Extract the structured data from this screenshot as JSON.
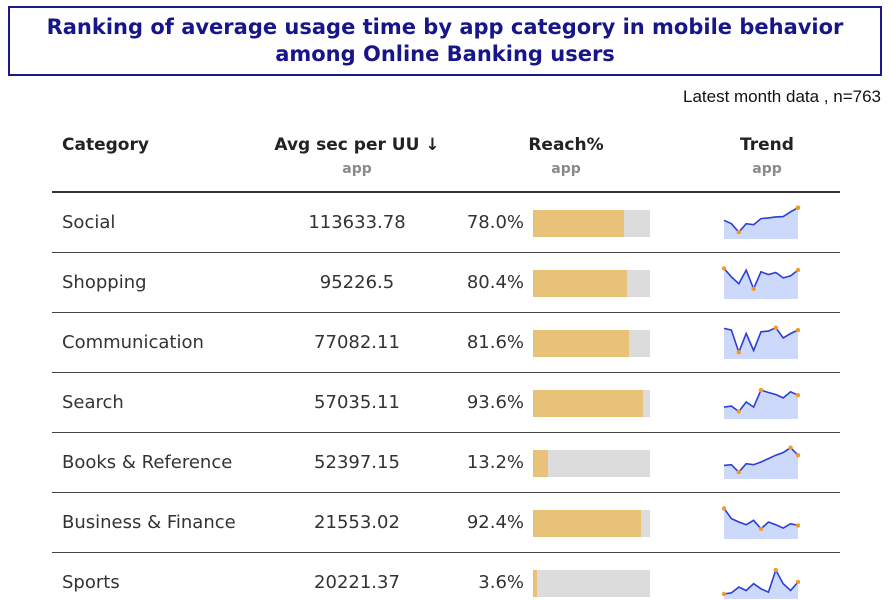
{
  "title": {
    "line1": "Ranking of average usage time by app category in mobile behavior",
    "line2": "among Online Banking users"
  },
  "subtitle": "Latest month data , n=763",
  "colors": {
    "title": "#16168a",
    "bar_fill": "#e9c27a",
    "bar_track": "#dcdcdc",
    "spark_line": "#2a3fd6",
    "spark_area": "#cdd9fb",
    "spark_marker": "#f2992e"
  },
  "headers": {
    "category": "Category",
    "avg": "Avg sec per UU ↓",
    "avg_sub": "app",
    "reach": "Reach%",
    "reach_sub": "app",
    "trend": "Trend",
    "trend_sub": "app"
  },
  "chart_data": {
    "type": "table",
    "columns": [
      "Category",
      "Avg sec per UU",
      "Reach%",
      "Trend"
    ],
    "rows": [
      {
        "category": "Social",
        "avg": "113633.78",
        "reach_label": "78.0%",
        "reach": 78.0,
        "trend": [
          0.55,
          0.45,
          0.2,
          0.45,
          0.42,
          0.6,
          0.62,
          0.65,
          0.66,
          0.8,
          0.92
        ]
      },
      {
        "category": "Shopping",
        "avg": "95226.5",
        "reach_label": "80.4%",
        "reach": 80.4,
        "trend": [
          0.9,
          0.65,
          0.45,
          0.85,
          0.3,
          0.8,
          0.72,
          0.78,
          0.62,
          0.68,
          0.85
        ]
      },
      {
        "category": "Communication",
        "avg": "77082.11",
        "reach_label": "81.6%",
        "reach": 81.6,
        "trend": [
          0.9,
          0.85,
          0.2,
          0.75,
          0.25,
          0.8,
          0.82,
          0.92,
          0.62,
          0.75,
          0.85
        ]
      },
      {
        "category": "Search",
        "avg": "57035.11",
        "reach_label": "93.6%",
        "reach": 93.6,
        "trend": [
          0.35,
          0.38,
          0.22,
          0.5,
          0.35,
          0.85,
          0.78,
          0.72,
          0.62,
          0.8,
          0.7
        ]
      },
      {
        "category": "Books & Reference",
        "avg": "52397.15",
        "reach_label": "13.2%",
        "reach": 13.2,
        "trend": [
          0.4,
          0.42,
          0.2,
          0.45,
          0.42,
          0.5,
          0.6,
          0.7,
          0.78,
          0.92,
          0.7
        ]
      },
      {
        "category": "Business & Finance",
        "avg": "21553.02",
        "reach_label": "92.4%",
        "reach": 92.4,
        "trend": [
          0.9,
          0.6,
          0.5,
          0.42,
          0.55,
          0.3,
          0.5,
          0.42,
          0.32,
          0.45,
          0.4
        ]
      },
      {
        "category": "Sports",
        "avg": "20221.37",
        "reach_label": "3.6%",
        "reach": 3.6,
        "trend": [
          0.15,
          0.18,
          0.35,
          0.25,
          0.45,
          0.3,
          0.2,
          0.85,
          0.45,
          0.25,
          0.5
        ]
      }
    ]
  }
}
